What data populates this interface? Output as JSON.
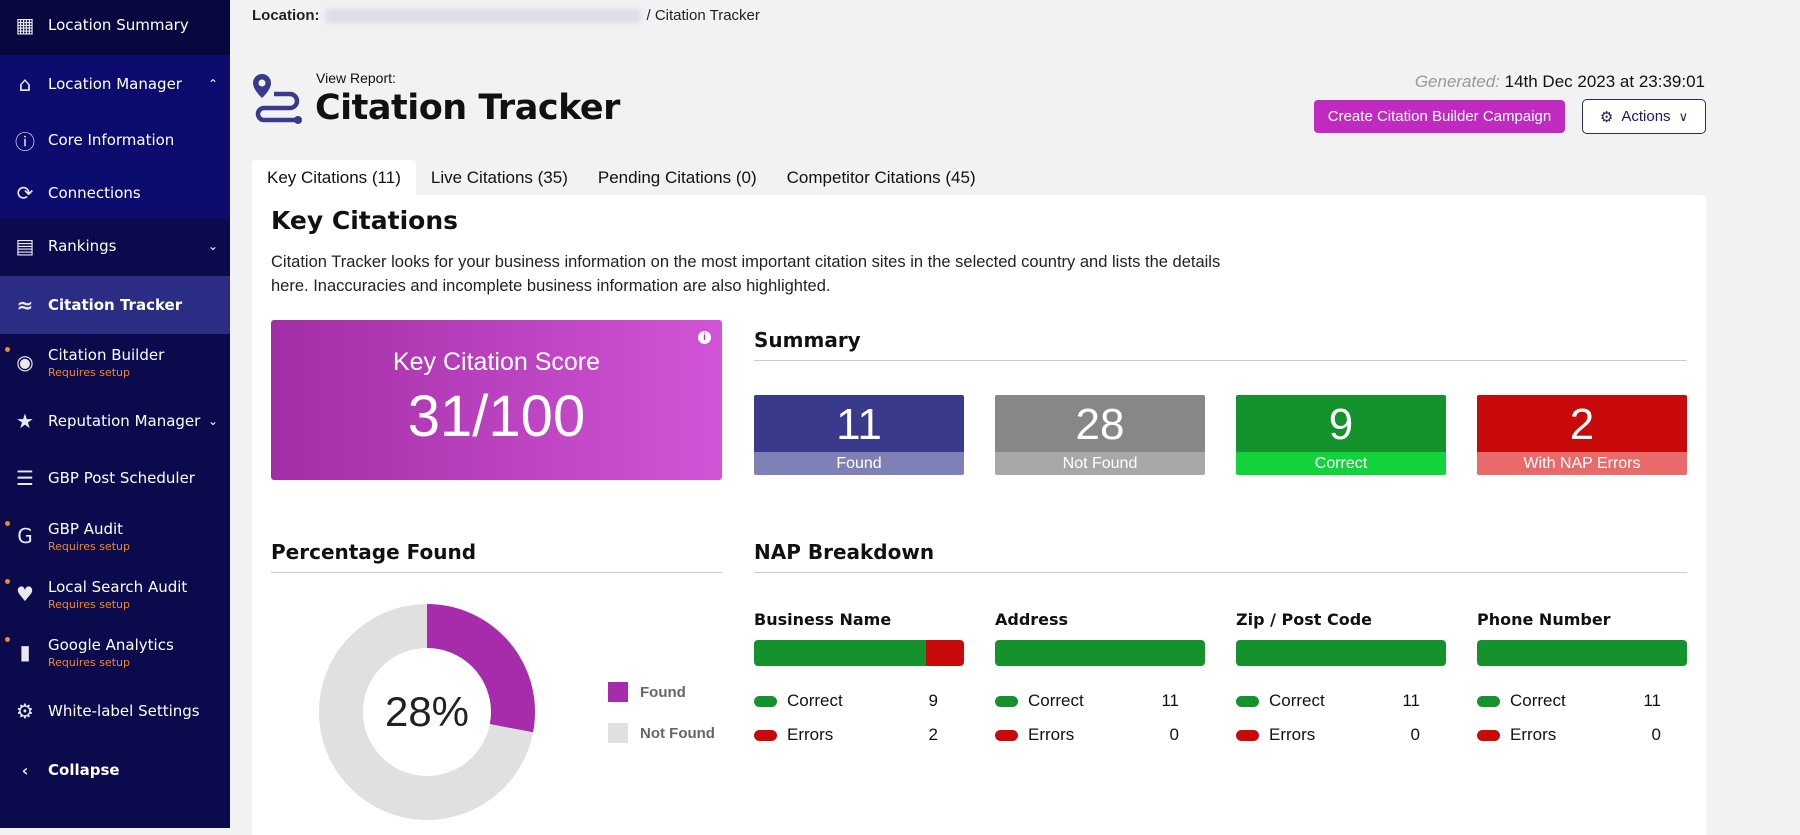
{
  "sidebar": {
    "items": [
      {
        "label": "Location Summary",
        "icon": "grid-icon"
      },
      {
        "label": "Location Manager",
        "icon": "home-icon"
      },
      {
        "label": "Core Information",
        "icon": "info-pin-icon"
      },
      {
        "label": "Connections",
        "icon": "connections-icon"
      },
      {
        "label": "Rankings",
        "icon": "bar-chart-icon"
      },
      {
        "label": "Citation Tracker",
        "icon": "route-icon"
      },
      {
        "label": "Citation Builder",
        "sub": "Requires setup",
        "icon": "map-pins-icon"
      },
      {
        "label": "Reputation Manager",
        "icon": "star-chat-icon"
      },
      {
        "label": "GBP Post Scheduler",
        "icon": "post-list-icon"
      },
      {
        "label": "GBP Audit",
        "sub": "Requires setup",
        "icon": "google-g-icon"
      },
      {
        "label": "Local Search Audit",
        "sub": "Requires setup",
        "icon": "pin-heartbeat-icon"
      },
      {
        "label": "Google Analytics",
        "sub": "Requires setup",
        "icon": "analytics-icon"
      },
      {
        "label": "White-label Settings",
        "icon": "gear-icon"
      }
    ],
    "collapse": "Collapse"
  },
  "breadcrumb": {
    "label": "Location:",
    "current": "Citation Tracker"
  },
  "header": {
    "pre": "View Report:",
    "title": "Citation Tracker",
    "generated_label": "Generated:",
    "generated_value": "14th Dec 2023 at 23:39:01",
    "create_btn": "Create Citation Builder Campaign",
    "actions_btn": "Actions"
  },
  "tabs": [
    "Key Citations (11)",
    "Live Citations (35)",
    "Pending Citations (0)",
    "Competitor Citations (45)"
  ],
  "main": {
    "heading": "Key Citations",
    "description": "Citation Tracker looks for your business information on the most important citation sites in the selected country and lists the details here. Inaccuracies and incomplete business information are also highlighted.",
    "score": {
      "label": "Key Citation Score",
      "value": "31/100"
    },
    "summary_heading": "Summary",
    "summary": [
      {
        "value": "11",
        "label": "Found",
        "top": "#3a3a8c",
        "bottom": "#7f80b5"
      },
      {
        "value": "28",
        "label": "Not Found",
        "top": "#878787",
        "bottom": "#a8a8a8"
      },
      {
        "value": "9",
        "label": "Correct",
        "top": "#14922c",
        "bottom": "#12d43a"
      },
      {
        "value": "2",
        "label": "With NAP Errors",
        "top": "#c90a0a",
        "bottom": "#e96a6a"
      }
    ],
    "pct_heading": "Percentage Found",
    "pct": {
      "value": "28%",
      "found": 28,
      "legend_found": "Found",
      "legend_not_found": "Not Found",
      "found_color": "#a72cab",
      "not_found_color": "#e0e0e0"
    },
    "nap_heading": "NAP Breakdown",
    "nap": [
      {
        "title": "Business Name",
        "correct": 9,
        "errors": 2
      },
      {
        "title": "Address",
        "correct": 11,
        "errors": 0
      },
      {
        "title": "Zip / Post Code",
        "correct": 11,
        "errors": 0
      },
      {
        "title": "Phone Number",
        "correct": 11,
        "errors": 0
      }
    ],
    "correct_label": "Correct",
    "errors_label": "Errors",
    "correct_color": "#14922c",
    "error_color": "#c90a0a"
  }
}
